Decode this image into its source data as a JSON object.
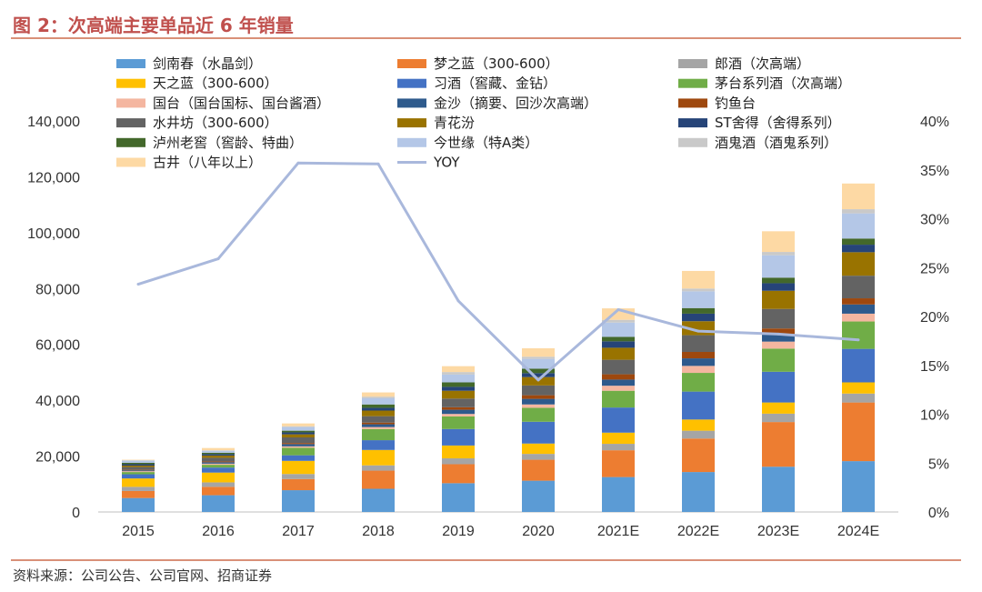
{
  "title": "图 2：次高端主要单品近 6 年销量",
  "source": "资料来源：公司公告、公司官网、招商证券",
  "chart_data": {
    "type": "bar",
    "stacked": true,
    "categories": [
      "2015",
      "2016",
      "2017",
      "2018",
      "2019",
      "2020",
      "2021E",
      "2022E",
      "2023E",
      "2024E"
    ],
    "ylim": [
      0,
      140000
    ],
    "yticks": [
      "0",
      "20,000",
      "40,000",
      "60,000",
      "80,000",
      "100,000",
      "120,000",
      "140,000"
    ],
    "y2lim": [
      0,
      40
    ],
    "y2ticks": [
      "0%",
      "5%",
      "10%",
      "15%",
      "20%",
      "25%",
      "30%",
      "35%",
      "40%"
    ],
    "series": [
      {
        "name": "剑南春（水晶剑）",
        "color": "#5b9bd5",
        "values": [
          5000,
          6000,
          7800,
          8300,
          10300,
          11200,
          12500,
          14300,
          16200,
          18200
        ]
      },
      {
        "name": "梦之蓝（300-600）",
        "color": "#ed7d31",
        "values": [
          2500,
          3000,
          4000,
          6500,
          6800,
          7500,
          9600,
          12000,
          16000,
          21000
        ]
      },
      {
        "name": "郎酒（次高端）",
        "color": "#a5a5a5",
        "values": [
          1500,
          1600,
          1800,
          1900,
          2100,
          2100,
          2300,
          2800,
          3000,
          3200
        ]
      },
      {
        "name": "天之蓝（300-600）",
        "color": "#ffc000",
        "values": [
          3000,
          3500,
          4700,
          5500,
          4600,
          3700,
          4000,
          4000,
          4000,
          4000
        ]
      },
      {
        "name": "习酒（窖藏、金钻）",
        "color": "#4472c4",
        "values": [
          1500,
          1800,
          2000,
          3500,
          5900,
          7800,
          9000,
          10000,
          11000,
          12000
        ]
      },
      {
        "name": "茅台系列酒（次高端）",
        "color": "#70ad47",
        "values": [
          800,
          1000,
          2700,
          4000,
          4500,
          5000,
          6000,
          6700,
          8300,
          9800
        ]
      },
      {
        "name": "国台（国台国标、国台酱酒）",
        "color": "#f4b6a0",
        "values": [
          300,
          400,
          500,
          700,
          900,
          1200,
          1800,
          2500,
          2500,
          2800
        ]
      },
      {
        "name": "金沙（摘要、回沙次高端）",
        "color": "#2e5a8c",
        "values": [
          300,
          500,
          800,
          1000,
          1500,
          2000,
          2200,
          2700,
          2700,
          3300
        ]
      },
      {
        "name": "钓鱼台",
        "color": "#9e480e",
        "values": [
          200,
          300,
          400,
          600,
          900,
          1300,
          1900,
          2300,
          2000,
          2200
        ]
      },
      {
        "name": "水井坊（300-600）",
        "color": "#636363",
        "values": [
          1000,
          1300,
          2000,
          2300,
          3100,
          3500,
          5200,
          6000,
          7000,
          8100
        ]
      },
      {
        "name": "青花汾",
        "color": "#997300",
        "values": [
          500,
          800,
          1100,
          2000,
          2800,
          3000,
          4300,
          5000,
          6500,
          8400
        ]
      },
      {
        "name": "ST舍得（舍得系列）",
        "color": "#264478",
        "values": [
          500,
          500,
          700,
          1000,
          1400,
          1400,
          2300,
          2700,
          2700,
          2700
        ]
      },
      {
        "name": "泸州老窖（窖龄、特曲）",
        "color": "#43682b",
        "values": [
          500,
          500,
          600,
          1200,
          1600,
          1600,
          1600,
          2000,
          2000,
          2200
        ]
      },
      {
        "name": "今世缘（特A类）",
        "color": "#b4c7e7",
        "values": [
          800,
          700,
          1300,
          2200,
          2800,
          3500,
          5100,
          6000,
          8000,
          9000
        ]
      },
      {
        "name": "酒鬼酒（酒鬼系列）",
        "color": "#c9c9c9",
        "values": [
          100,
          200,
          300,
          600,
          900,
          800,
          1000,
          1000,
          1200,
          1500
        ]
      },
      {
        "name": "古井（八年以上）",
        "color": "#fdd9a4",
        "values": [
          200,
          800,
          1000,
          1500,
          2100,
          3000,
          4100,
          6300,
          7400,
          9200
        ]
      }
    ],
    "line": {
      "name": "YOY",
      "color": "#a9b8dc",
      "axis": "right",
      "values": [
        23.3,
        25.9,
        35.7,
        35.6,
        21.6,
        13.5,
        20.7,
        18.5,
        18.2,
        17.6
      ]
    }
  }
}
